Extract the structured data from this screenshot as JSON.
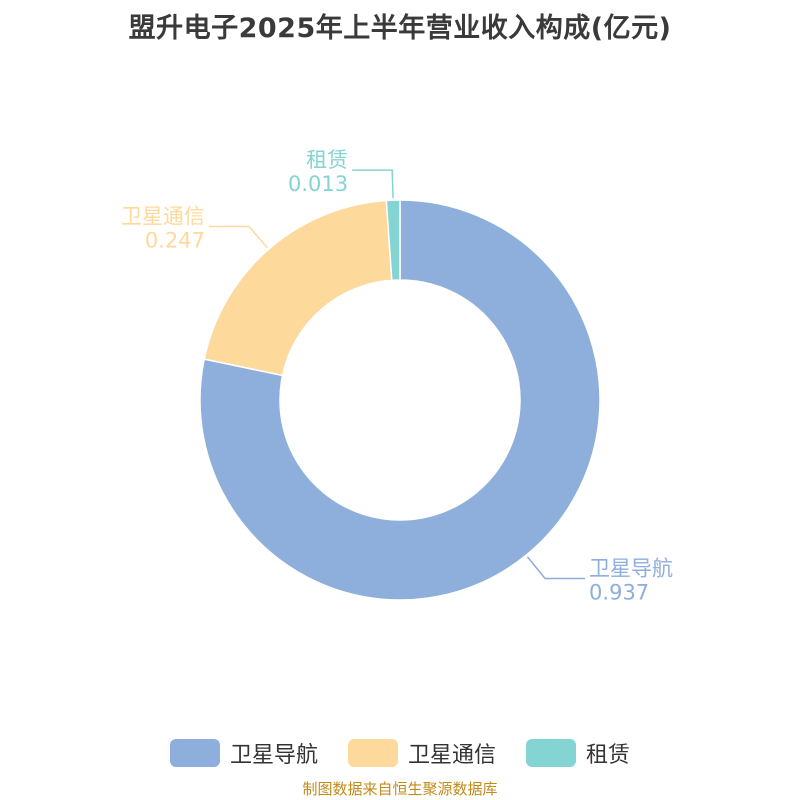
{
  "title": "盟升电子2025年上半年营业收入构成(亿元)",
  "source": "制图数据来自恒生聚源数据库",
  "chart_data": {
    "type": "pie",
    "style": "donut",
    "categories": [
      "卫星导航",
      "卫星通信",
      "租赁"
    ],
    "values": [
      0.937,
      0.247,
      0.013
    ],
    "value_labels": [
      "0.937",
      "0.247",
      "0.013"
    ],
    "colors": [
      "#8eaedb",
      "#fdd99b",
      "#85d4d4"
    ],
    "legend_position": "bottom"
  }
}
